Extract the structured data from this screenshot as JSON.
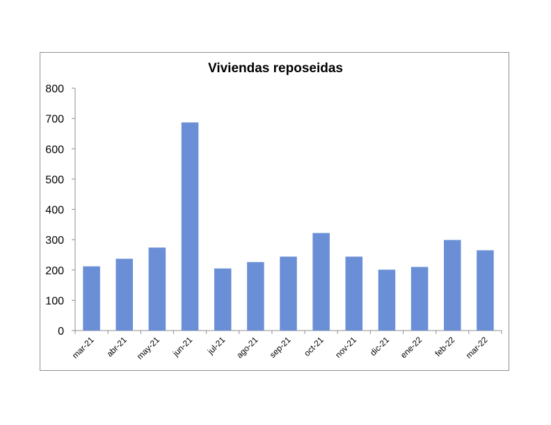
{
  "chart_data": {
    "type": "bar",
    "title": "Viviendas reposeidas",
    "xlabel": "",
    "ylabel": "",
    "categories": [
      "mar-21",
      "abr-21",
      "may-21",
      "jun-21",
      "jul-21",
      "ago-21",
      "sep-21",
      "oct-21",
      "nov-21",
      "dic-21",
      "ene-22",
      "feb-22",
      "mar-22"
    ],
    "values": [
      212,
      237,
      274,
      687,
      205,
      226,
      244,
      322,
      244,
      201,
      210,
      299,
      265
    ],
    "ylim": [
      0,
      800
    ],
    "yticks": [
      0,
      100,
      200,
      300,
      400,
      500,
      600,
      700,
      800
    ],
    "grid": false,
    "legend": "none",
    "bar_color": "#6a8fd6"
  }
}
